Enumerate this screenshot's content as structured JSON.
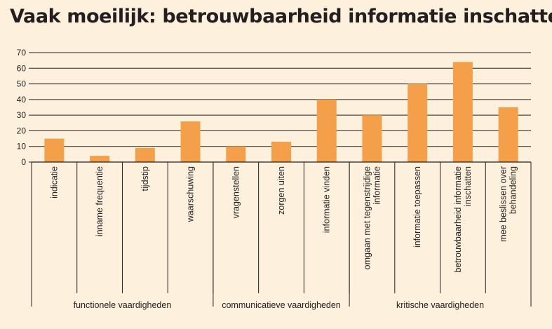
{
  "chart_data": {
    "type": "bar",
    "title": "Vaak moeilijk: betrouwbaarheid informatie inschatten",
    "xlabel": "",
    "ylabel": "",
    "ylim": [
      0,
      70
    ],
    "yticks": [
      0,
      10,
      20,
      30,
      40,
      50,
      60,
      70
    ],
    "grid": true,
    "bar_color": "#f4a04a",
    "categories": [
      [
        "indicatie"
      ],
      [
        "inname frequentie"
      ],
      [
        "tijdstip"
      ],
      [
        "waarschuwing"
      ],
      [
        "vragenstellen"
      ],
      [
        "zorgen uiten"
      ],
      [
        "informatie vinden"
      ],
      [
        "omgaan met tegenstrijdige",
        "informatie"
      ],
      [
        "informatie toepassen"
      ],
      [
        "betrouwbaarheid informatie",
        "inschatten"
      ],
      [
        "mee beslissen over",
        "behandeling"
      ]
    ],
    "values": [
      15,
      4,
      9,
      26,
      10,
      13,
      40,
      30,
      50,
      64,
      35
    ],
    "groups": [
      {
        "label": "functionele vaardigheden",
        "count": 4
      },
      {
        "label": "communicatieve vaardigheden",
        "count": 3
      },
      {
        "label": "kritische vaardigheden",
        "count": 4
      }
    ]
  }
}
